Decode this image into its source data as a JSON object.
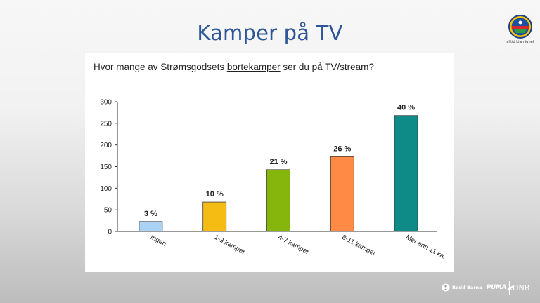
{
  "slide": {
    "title": "Kamper på TV",
    "logo_caption": "alltid kjærlighet"
  },
  "question": {
    "before": "Hvor mange av Strømsgodsets ",
    "underlined": "bortekamper",
    "after": " ser du på TV/stream?"
  },
  "chart_data": {
    "type": "bar",
    "categories": [
      "Ingen",
      "1-3 kamper",
      "4-7 kamper",
      "8-11 kamper",
      "Mer enn 11 ka."
    ],
    "values": [
      23,
      68,
      143,
      173,
      268
    ],
    "labels": [
      "3 %",
      "10 %",
      "21 %",
      "26 %",
      "40 %"
    ],
    "colors": [
      "#a9d2f4",
      "#f5bd14",
      "#86b60b",
      "#ff8a45",
      "#0e8a87"
    ],
    "yticks": [
      0,
      50,
      100,
      150,
      200,
      250,
      300
    ],
    "ylim": [
      0,
      300
    ],
    "xlabel": "",
    "ylabel": "",
    "grid": false
  },
  "footer": {
    "sponsors": [
      "Redd Barna",
      "PUMA",
      "DNB"
    ]
  }
}
